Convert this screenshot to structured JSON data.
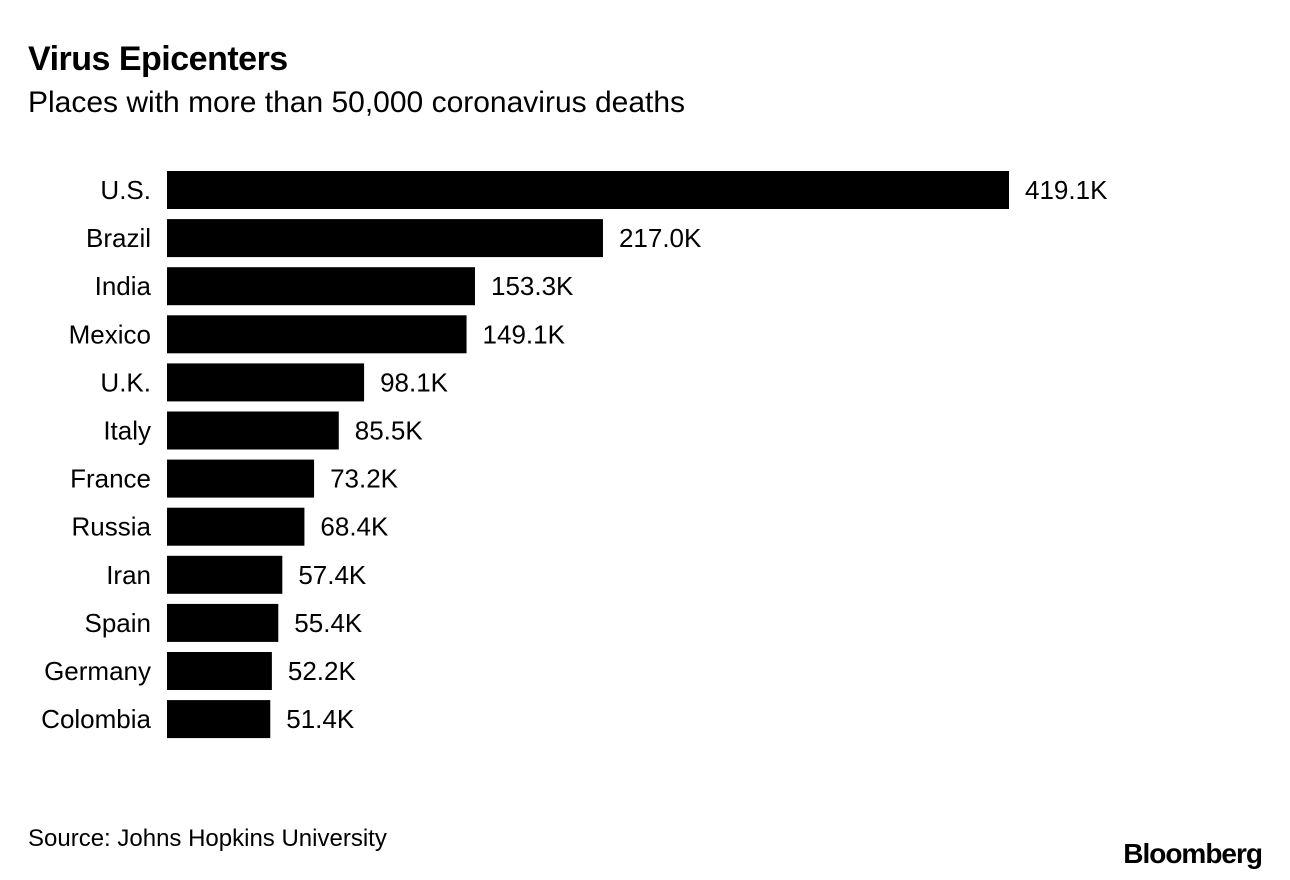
{
  "header": {
    "title": "Virus Epicenters",
    "subtitle": "Places with more than 50,000 coronavirus deaths"
  },
  "footer": {
    "source": "Source: Johns Hopkins University",
    "brand": "Bloomberg"
  },
  "chart_data": {
    "type": "bar",
    "orientation": "horizontal",
    "title": "Virus Epicenters",
    "subtitle": "Places with more than 50,000 coronavirus deaths",
    "categories": [
      "U.S.",
      "Brazil",
      "India",
      "Mexico",
      "U.K.",
      "Italy",
      "France",
      "Russia",
      "Iran",
      "Spain",
      "Germany",
      "Colombia"
    ],
    "values": [
      419100,
      217000,
      153300,
      149100,
      98100,
      85500,
      73200,
      68400,
      57400,
      55400,
      52200,
      51400
    ],
    "data_labels": [
      "419.1K",
      "217.0K",
      "153.3K",
      "149.1K",
      "98.1K",
      "85.5K",
      "73.2K",
      "68.4K",
      "57.4K",
      "55.4K",
      "52.2K",
      "51.4K"
    ],
    "xlabel": "",
    "ylabel": "",
    "grid": false,
    "legend": "none",
    "bar_color": "#000000"
  }
}
